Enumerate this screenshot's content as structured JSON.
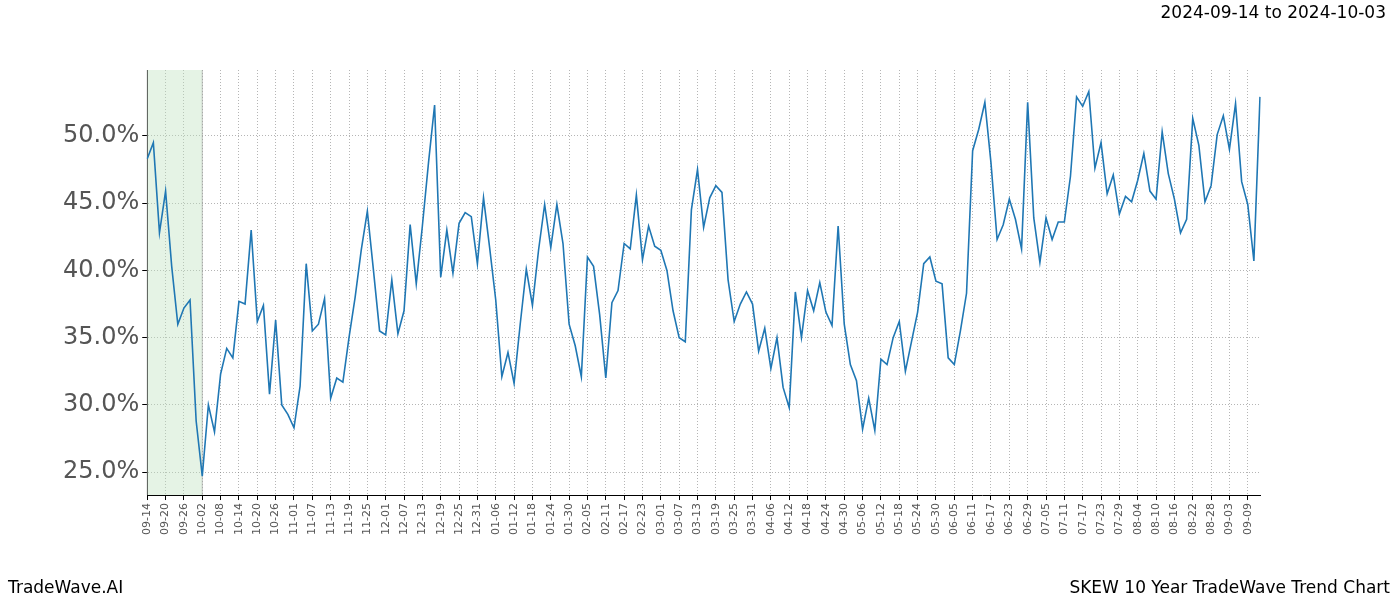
{
  "chart_data": {
    "type": "line",
    "title": "2024-09-14 to 2024-10-03",
    "source": "TradeWave.AI",
    "caption": "SKEW 10 Year TradeWave Trend Chart",
    "categories": [
      "09-14",
      null,
      null,
      "09-20",
      null,
      null,
      "09-26",
      null,
      null,
      "10-02",
      null,
      null,
      "10-08",
      null,
      null,
      "10-14",
      null,
      null,
      "10-20",
      null,
      null,
      "10-26",
      null,
      null,
      "11-01",
      null,
      null,
      "11-07",
      null,
      null,
      "11-13",
      null,
      null,
      "11-19",
      null,
      null,
      "11-25",
      null,
      null,
      "12-01",
      null,
      null,
      "12-07",
      null,
      null,
      "12-13",
      null,
      null,
      "12-19",
      null,
      null,
      "12-25",
      null,
      null,
      "12-31",
      null,
      null,
      "01-06",
      null,
      null,
      "01-12",
      null,
      null,
      "01-18",
      null,
      null,
      "01-24",
      null,
      null,
      "01-30",
      null,
      null,
      "02-05",
      null,
      null,
      "02-11",
      null,
      null,
      "02-17",
      null,
      null,
      "02-23",
      null,
      null,
      "03-01",
      null,
      null,
      "03-07",
      null,
      null,
      "03-13",
      null,
      null,
      "03-19",
      null,
      null,
      "03-25",
      null,
      null,
      "03-31",
      null,
      null,
      "04-06",
      null,
      null,
      "04-12",
      null,
      null,
      "04-18",
      null,
      null,
      "04-24",
      null,
      null,
      "04-30",
      null,
      null,
      "05-06",
      null,
      null,
      "05-12",
      null,
      null,
      "05-18",
      null,
      null,
      "05-24",
      null,
      null,
      "05-30",
      null,
      null,
      "06-05",
      null,
      null,
      "06-11",
      null,
      null,
      "06-17",
      null,
      null,
      "06-23",
      null,
      null,
      "06-29",
      null,
      null,
      "07-05",
      null,
      null,
      "07-11",
      null,
      null,
      "07-17",
      null,
      null,
      "07-23",
      null,
      null,
      "07-29",
      null,
      null,
      "08-04",
      null,
      null,
      "08-10",
      null,
      null,
      "08-16",
      null,
      null,
      "08-22",
      null,
      null,
      "08-28",
      null,
      null,
      "09-03",
      null,
      null,
      "09-09",
      null,
      null
    ],
    "values": [
      48.3,
      49.5,
      42.8,
      45.9,
      40.3,
      36.0,
      37.2,
      37.8,
      28.8,
      24.7,
      30.0,
      28.0,
      32.3,
      34.2,
      33.5,
      37.7,
      37.5,
      43.0,
      36.2,
      37.4,
      30.8,
      36.3,
      30.0,
      29.3,
      28.3,
      31.4,
      40.5,
      35.5,
      36.0,
      37.9,
      30.5,
      32.0,
      31.7,
      35.0,
      38.0,
      41.5,
      44.4,
      40.0,
      35.5,
      35.2,
      39.3,
      35.3,
      37.0,
      43.4,
      39.0,
      43.3,
      48.0,
      52.3,
      39.5,
      43.0,
      39.8,
      43.5,
      44.3,
      44.0,
      40.5,
      45.4,
      41.7,
      37.8,
      32.1,
      33.9,
      31.6,
      36.0,
      40.1,
      37.4,
      41.5,
      44.9,
      41.7,
      44.9,
      42.0,
      36.0,
      34.4,
      32.1,
      41.0,
      40.3,
      36.7,
      32.0,
      37.6,
      38.5,
      42.0,
      41.6,
      45.6,
      40.8,
      43.3,
      41.8,
      41.5,
      40.0,
      37.0,
      35.0,
      34.7,
      44.5,
      47.5,
      43.2,
      45.4,
      46.3,
      45.8,
      39.3,
      36.2,
      37.5,
      38.4,
      37.5,
      34.0,
      35.7,
      32.7,
      35.0,
      31.3,
      29.8,
      38.4,
      35.0,
      38.5,
      37.0,
      39.1,
      36.9,
      35.9,
      43.3,
      36.0,
      33.0,
      31.8,
      28.2,
      30.5,
      28.1,
      33.4,
      33.0,
      35.0,
      36.2,
      32.5,
      34.7,
      36.9,
      40.5,
      41.0,
      39.2,
      39.0,
      33.5,
      33.0,
      35.5,
      38.3,
      48.9,
      50.5,
      52.5,
      48.0,
      42.3,
      43.4,
      45.3,
      43.8,
      41.6,
      52.5,
      43.9,
      40.6,
      43.9,
      42.3,
      43.6,
      43.6,
      47.0,
      52.9,
      52.2,
      53.3,
      47.6,
      49.5,
      45.7,
      47.1,
      44.2,
      45.5,
      45.1,
      46.7,
      48.7,
      45.9,
      45.3,
      50.3,
      47.2,
      45.3,
      42.8,
      43.8,
      51.3,
      49.3,
      45.1,
      46.3,
      50.1,
      51.5,
      49.0,
      52.4,
      46.6,
      44.9,
      40.7,
      52.9
    ],
    "color": "#1f77b4",
    "shaded_range": [
      "09-14",
      "10-02"
    ],
    "ylim": [
      23.3,
      54.9
    ],
    "yticks": [
      {
        "value": 25,
        "label": "25.0%"
      },
      {
        "value": 30,
        "label": "30.0%"
      },
      {
        "value": 35,
        "label": "35.0%"
      },
      {
        "value": 40,
        "label": "40.0%"
      },
      {
        "value": 45,
        "label": "45.0%"
      },
      {
        "value": 50,
        "label": "50.0%"
      }
    ],
    "grid": true
  }
}
